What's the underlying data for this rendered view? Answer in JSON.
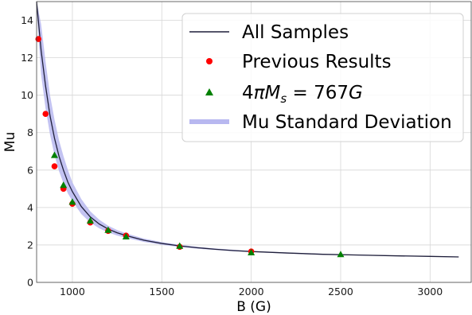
{
  "chart_data": {
    "type": "line",
    "xlabel": "B (G)",
    "ylabel": "Mu",
    "xlim": [
      800,
      3230
    ],
    "ylim": [
      0,
      15
    ],
    "x_ticks": [
      1000,
      1500,
      2000,
      2500,
      3000
    ],
    "y_ticks": [
      0,
      2,
      4,
      6,
      8,
      10,
      12,
      14
    ],
    "grid": true,
    "legend_position": "top-right",
    "series": [
      {
        "name": "All Samples",
        "kind": "line",
        "color": "#1f1f3a",
        "x": [
          800,
          825,
          850,
          875,
          900,
          925,
          950,
          975,
          1000,
          1050,
          1100,
          1150,
          1200,
          1250,
          1300,
          1400,
          1500,
          1600,
          1700,
          1800,
          1900,
          2000,
          2200,
          2400,
          2600,
          2800,
          3000,
          3160
        ],
        "y": [
          15.0,
          12.4,
          10.5,
          8.9,
          7.7,
          6.75,
          6.0,
          5.35,
          4.85,
          4.05,
          3.5,
          3.12,
          2.85,
          2.65,
          2.5,
          2.25,
          2.08,
          1.95,
          1.85,
          1.77,
          1.7,
          1.65,
          1.57,
          1.5,
          1.46,
          1.42,
          1.39,
          1.36
        ]
      },
      {
        "name": "Previous Results",
        "kind": "points",
        "marker": "circle",
        "color": "#ff0000",
        "x": [
          810,
          850,
          900,
          950,
          1000,
          1100,
          1200,
          1300,
          1600,
          2000
        ],
        "y": [
          13.0,
          9.0,
          6.2,
          5.0,
          4.2,
          3.2,
          2.75,
          2.5,
          1.9,
          1.65
        ]
      },
      {
        "name": "4πM_s = 767G",
        "kind": "points",
        "marker": "triangle",
        "color": "#008000",
        "x": [
          900,
          950,
          1000,
          1100,
          1200,
          1300,
          1600,
          2000,
          2500
        ],
        "y": [
          6.8,
          5.2,
          4.3,
          3.3,
          2.8,
          2.45,
          1.95,
          1.6,
          1.5
        ]
      },
      {
        "name": "Mu Standard Deviation",
        "kind": "band",
        "color": "#b8b8f0",
        "x": [
          800,
          825,
          850,
          875,
          900,
          925,
          950,
          975,
          1000,
          1050,
          1100,
          1150,
          1200,
          1250,
          1300,
          1400,
          1500,
          1600,
          1700,
          1800,
          1900,
          2000,
          2200,
          2400,
          2600,
          2800,
          3000,
          3160
        ],
        "upper": [
          15.0,
          13.8,
          11.8,
          10.0,
          8.7,
          7.6,
          6.75,
          6.0,
          5.35,
          4.45,
          3.8,
          3.35,
          3.03,
          2.8,
          2.62,
          2.34,
          2.15,
          2.01,
          1.9,
          1.81,
          1.74,
          1.68,
          1.6,
          1.53,
          1.48,
          1.44,
          1.41,
          1.38
        ],
        "lower": [
          14.6,
          11.1,
          9.3,
          7.9,
          6.8,
          5.95,
          5.3,
          4.75,
          4.35,
          3.65,
          3.2,
          2.89,
          2.67,
          2.5,
          2.38,
          2.16,
          2.01,
          1.89,
          1.8,
          1.73,
          1.66,
          1.62,
          1.54,
          1.47,
          1.44,
          1.4,
          1.37,
          1.34
        ]
      }
    ],
    "legend": [
      {
        "label": "All Samples"
      },
      {
        "label": "Previous Results"
      },
      {
        "label_prefix": "4",
        "label_pi": "π",
        "label_m": "M",
        "label_sub": "s",
        "label_eq": " = 767",
        "label_g": "G"
      },
      {
        "label": "Mu Standard Deviation"
      }
    ]
  }
}
